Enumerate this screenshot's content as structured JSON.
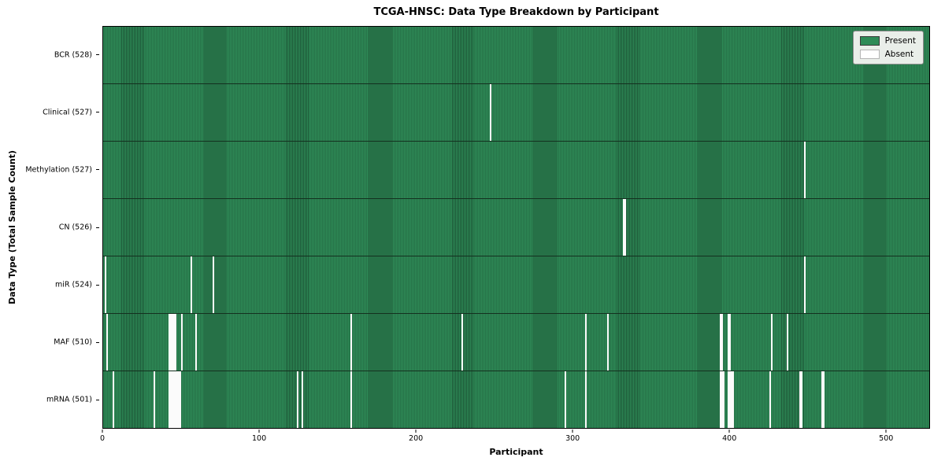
{
  "chart_data": {
    "type": "heatmap",
    "title": "TCGA-HNSC: Data Type Breakdown by Participant",
    "xlabel": "Participant",
    "ylabel": "Data Type (Total Sample Count)",
    "x_ticks": [
      0,
      100,
      200,
      300,
      400,
      500
    ],
    "x_range": [
      0,
      528
    ],
    "n_participants": 528,
    "grid": false,
    "legend_position": "upper right",
    "legend_items": [
      {
        "label": "Present",
        "color": "#2e8b57"
      },
      {
        "label": "Absent",
        "color": "#ffffff"
      }
    ],
    "colors": {
      "present": "#2e8b57",
      "present_stripe_dark": "#1d5737",
      "absent": "#fbfbfb",
      "row_edge": "#14301f"
    },
    "rows": [
      {
        "name": "BCR",
        "label": "BCR (528)",
        "total": 528,
        "absent_participants": []
      },
      {
        "name": "Clinical",
        "label": "Clinical (527)",
        "total": 527,
        "absent_participants": [
          247
        ]
      },
      {
        "name": "Methylation",
        "label": "Methylation (527)",
        "total": 527,
        "absent_participants": [
          448
        ]
      },
      {
        "name": "CN",
        "label": "CN (526)",
        "total": 526,
        "absent_participants": [
          332,
          333
        ]
      },
      {
        "name": "miR",
        "label": "miR (524)",
        "total": 524,
        "absent_participants": [
          1,
          56,
          70,
          448
        ]
      },
      {
        "name": "MAF",
        "label": "MAF (510)",
        "total": 510,
        "absent_participants": [
          2,
          42,
          43,
          44,
          45,
          46,
          50,
          59,
          158,
          229,
          308,
          322,
          394,
          395,
          399,
          400,
          427,
          437
        ]
      },
      {
        "name": "mRNA",
        "label": "mRNA (501)",
        "total": 501,
        "absent_participants": [
          6,
          32,
          42,
          43,
          44,
          45,
          46,
          47,
          48,
          49,
          124,
          127,
          158,
          295,
          308,
          394,
          395,
          396,
          399,
          400,
          401,
          402,
          426,
          445,
          446,
          459,
          460
        ]
      }
    ]
  }
}
